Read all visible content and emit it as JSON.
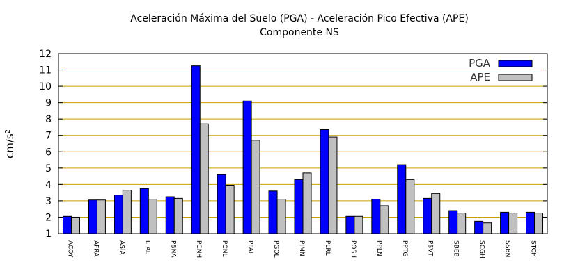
{
  "chart_data": {
    "type": "bar",
    "title": "Aceleración Máxima del Suelo (PGA) -  Aceleración Pico Efectiva (APE)",
    "subtitle": "Componente NS",
    "xlabel": "",
    "ylabel": "cm/s",
    "ylabel_superscript": "2",
    "ylim": [
      1,
      12
    ],
    "yticks": [
      1,
      2,
      3,
      4,
      5,
      6,
      7,
      8,
      9,
      10,
      11,
      12
    ],
    "grid": true,
    "legend_position": "top-right",
    "categories": [
      "ACOY",
      "AFRA",
      "ASIA",
      "LTAL",
      "PBNA",
      "PCNH",
      "PCNL",
      "PFAL",
      "PGOL",
      "PJMN",
      "PLRL",
      "POSH",
      "PPLN",
      "PPTG",
      "PSVT",
      "SBEB",
      "SCGH",
      "SSBN",
      "STCH"
    ],
    "series": [
      {
        "name": "PGA",
        "color": "#0000ff",
        "values": [
          2.05,
          3.05,
          3.35,
          3.75,
          3.25,
          11.25,
          4.6,
          9.1,
          3.6,
          4.3,
          7.35,
          2.05,
          3.1,
          5.2,
          3.15,
          2.4,
          1.75,
          2.3,
          2.3
        ]
      },
      {
        "name": "APE",
        "color": "#c0c0c0",
        "values": [
          2.0,
          3.05,
          3.65,
          3.1,
          3.15,
          7.7,
          3.95,
          6.7,
          3.1,
          4.7,
          6.9,
          2.05,
          2.7,
          4.3,
          3.45,
          2.25,
          1.65,
          2.25,
          2.25
        ]
      }
    ],
    "colors": {
      "grid": "#c8a000",
      "axis": "#000000"
    }
  }
}
